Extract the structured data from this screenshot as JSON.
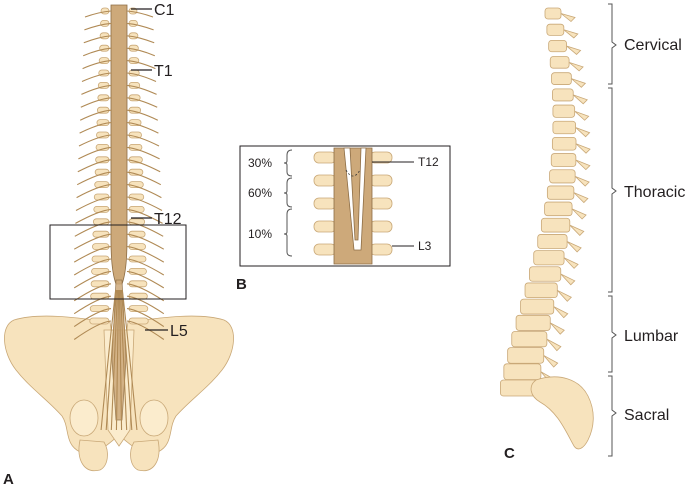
{
  "panel_a": {
    "letter": "A",
    "labels": {
      "c1": "C1",
      "t1": "T1",
      "t12": "T12",
      "l5": "L5"
    }
  },
  "panel_b": {
    "letter": "B",
    "percent_top": "30%",
    "percent_mid": "60%",
    "percent_low": "10%",
    "label_t12": "T12",
    "label_l3": "L3"
  },
  "panel_c": {
    "letter": "C",
    "regions": [
      "Cervical",
      "Thoracic",
      "Lumbar",
      "Sacral"
    ]
  },
  "colors": {
    "bone": "#f7e3bd",
    "cord": "#cda97a",
    "outline": "#c9a877"
  }
}
